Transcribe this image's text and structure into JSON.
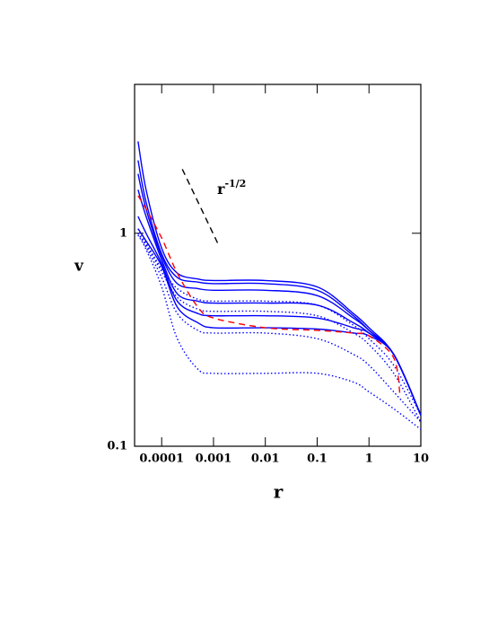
{
  "chart_data": {
    "type": "line",
    "x_label": "r",
    "y_label": "v",
    "log_x": true,
    "log_y": true,
    "xlim": [
      3e-05,
      10
    ],
    "ylim": [
      0.1,
      5
    ],
    "xticks": [
      0.0001,
      0.001,
      0.01,
      0.1,
      1,
      10
    ],
    "yticks": [
      0.1,
      1
    ],
    "annotation": {
      "text": "r",
      "superscript": "-1/2"
    },
    "x": [
      3.5e-05,
      5e-05,
      0.0001,
      0.0002,
      0.0005,
      0.001,
      0.01,
      0.1,
      0.5,
      1,
      3,
      10
    ],
    "series": [
      {
        "color": "#0000ff",
        "dash": "solid",
        "values": [
          2.7,
          1.6,
          0.85,
          0.65,
          0.61,
          0.6,
          0.6,
          0.56,
          0.42,
          0.36,
          0.27,
          0.14
        ]
      },
      {
        "color": "#0000ff",
        "dash": "solid",
        "values": [
          2.2,
          1.4,
          0.8,
          0.62,
          0.59,
          0.58,
          0.58,
          0.54,
          0.41,
          0.35,
          0.27,
          0.14
        ]
      },
      {
        "color": "#0000ff",
        "dash": "solid",
        "values": [
          1.9,
          1.3,
          0.78,
          0.58,
          0.55,
          0.54,
          0.54,
          0.51,
          0.4,
          0.35,
          0.27,
          0.14
        ]
      },
      {
        "color": "#0000ff",
        "dash": "solid",
        "values": [
          1.6,
          1.2,
          0.75,
          0.52,
          0.48,
          0.47,
          0.47,
          0.46,
          0.38,
          0.34,
          0.27,
          0.14
        ]
      },
      {
        "color": "#0000ff",
        "dash": "solid",
        "values": [
          1.2,
          1.0,
          0.72,
          0.48,
          0.42,
          0.41,
          0.41,
          0.4,
          0.36,
          0.34,
          0.27,
          0.14
        ]
      },
      {
        "color": "#0000ff",
        "dash": "solid",
        "values": [
          1.05,
          0.92,
          0.7,
          0.45,
          0.38,
          0.36,
          0.36,
          0.355,
          0.34,
          0.33,
          0.27,
          0.14
        ]
      },
      {
        "color": "#0000ff",
        "dash": "dotted",
        "values": [
          1.05,
          0.9,
          0.68,
          0.55,
          0.49,
          0.48,
          0.48,
          0.46,
          0.37,
          0.32,
          0.24,
          0.14
        ]
      },
      {
        "color": "#0000ff",
        "dash": "dotted",
        "values": [
          1.0,
          0.88,
          0.66,
          0.5,
          0.44,
          0.43,
          0.43,
          0.41,
          0.34,
          0.3,
          0.22,
          0.13
        ]
      },
      {
        "color": "#0000ff",
        "dash": "dotted",
        "values": [
          1.0,
          0.86,
          0.62,
          0.42,
          0.35,
          0.34,
          0.34,
          0.32,
          0.27,
          0.24,
          0.18,
          0.13
        ]
      },
      {
        "color": "#0000ff",
        "dash": "dotted",
        "values": [
          0.98,
          0.84,
          0.56,
          0.32,
          0.23,
          0.22,
          0.22,
          0.22,
          0.2,
          0.18,
          0.15,
          0.12
        ]
      },
      {
        "color": "#ff0000",
        "dash": "dashed",
        "x": [
          3.5e-05,
          5e-05,
          0.0001,
          0.0002,
          0.0005,
          0.001,
          0.01,
          0.1,
          0.5,
          1,
          3,
          4
        ],
        "values": [
          1.5,
          1.3,
          0.95,
          0.65,
          0.45,
          0.4,
          0.36,
          0.35,
          0.34,
          0.33,
          0.26,
          0.17
        ]
      },
      {
        "color": "#000000",
        "dash": "dashed",
        "x": [
          0.00025,
          0.0012
        ],
        "values": [
          2.0,
          0.9
        ]
      }
    ]
  }
}
